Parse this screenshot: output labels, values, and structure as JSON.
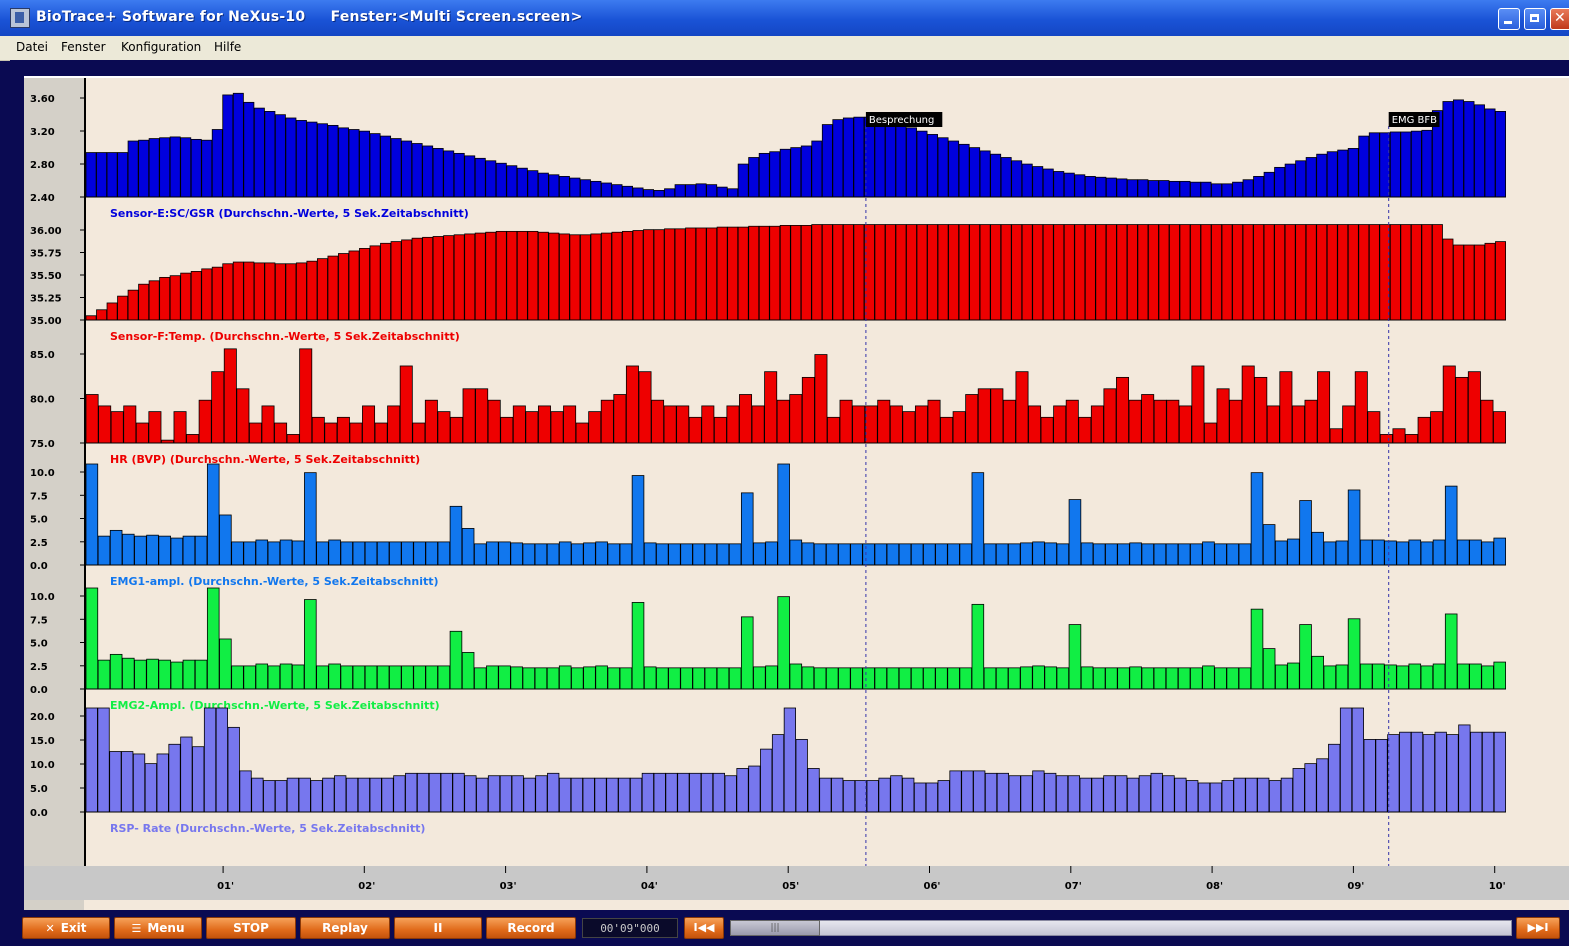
{
  "window": {
    "title": "BioTrace+ Software for NeXus-10     Fenster:<Multi Screen.screen>"
  },
  "menu": [
    {
      "label": "Datei"
    },
    {
      "label": "Fenster"
    },
    {
      "label": "Konfiguration"
    },
    {
      "label": "Hilfe"
    }
  ],
  "markers": [
    {
      "label": "Besprechung",
      "x": 5.55
    },
    {
      "label": "EMG BFB",
      "x": 9.25
    }
  ],
  "colors": {
    "background": "#f3e9dc",
    "sc": "#0000dd",
    "temp": "#ee0000",
    "hr": "#ee0000",
    "emg1": "#1177ee",
    "emg2": "#11ee44",
    "rsp": "#7777ee"
  },
  "chart_data": [
    {
      "type": "bar",
      "id": "sc",
      "label": "Sensor-E:SC/GSR (Durchschn.-Werte, 5 Sek.Zeitabschnitt)",
      "yticks": [
        "3.60",
        "3.20",
        "2.80",
        "2.40"
      ],
      "ylim": [
        2.4,
        3.7
      ],
      "values": [
        2.94,
        2.94,
        2.94,
        2.94,
        3.08,
        3.09,
        3.11,
        3.12,
        3.13,
        3.12,
        3.1,
        3.09,
        3.22,
        3.64,
        3.66,
        3.55,
        3.48,
        3.44,
        3.4,
        3.36,
        3.33,
        3.31,
        3.29,
        3.27,
        3.24,
        3.22,
        3.2,
        3.17,
        3.14,
        3.11,
        3.08,
        3.05,
        3.02,
        2.99,
        2.96,
        2.93,
        2.9,
        2.87,
        2.84,
        2.81,
        2.78,
        2.75,
        2.72,
        2.69,
        2.67,
        2.65,
        2.63,
        2.61,
        2.59,
        2.57,
        2.55,
        2.53,
        2.51,
        2.49,
        2.48,
        2.5,
        2.55,
        2.55,
        2.56,
        2.55,
        2.52,
        2.5,
        2.8,
        2.88,
        2.93,
        2.95,
        2.98,
        3.0,
        3.02,
        3.08,
        3.28,
        3.34,
        3.36,
        3.37,
        3.37,
        3.35,
        3.32,
        3.28,
        3.24,
        3.2,
        3.16,
        3.12,
        3.08,
        3.04,
        3.0,
        2.96,
        2.92,
        2.88,
        2.84,
        2.8,
        2.77,
        2.74,
        2.71,
        2.69,
        2.67,
        2.65,
        2.64,
        2.63,
        2.62,
        2.61,
        2.61,
        2.6,
        2.6,
        2.59,
        2.59,
        2.58,
        2.58,
        2.56,
        2.56,
        2.58,
        2.61,
        2.65,
        2.7,
        2.76,
        2.8,
        2.84,
        2.88,
        2.92,
        2.95,
        2.97,
        2.99,
        3.14,
        3.18,
        3.18,
        3.19,
        3.19,
        3.2,
        3.21,
        3.45,
        3.56,
        3.58,
        3.56,
        3.52,
        3.47,
        3.44
      ]
    },
    {
      "type": "bar",
      "id": "temp",
      "label": "Sensor-F:Temp. (Durchschn.-Werte, 5 Sek.Zeitabschnitt)",
      "yticks": [
        "36.00",
        "35.75",
        "35.50",
        "35.25",
        "35.00"
      ],
      "ylim": [
        35.0,
        36.15
      ],
      "values": [
        35.05,
        35.12,
        35.2,
        35.28,
        35.35,
        35.42,
        35.46,
        35.5,
        35.52,
        35.55,
        35.57,
        35.6,
        35.62,
        35.66,
        35.68,
        35.68,
        35.67,
        35.67,
        35.66,
        35.66,
        35.67,
        35.69,
        35.72,
        35.75,
        35.78,
        35.81,
        35.84,
        35.87,
        35.9,
        35.92,
        35.94,
        35.96,
        35.97,
        35.98,
        35.99,
        36.0,
        36.01,
        36.02,
        36.03,
        36.04,
        36.04,
        36.04,
        36.04,
        36.03,
        36.02,
        36.01,
        36.0,
        36.0,
        36.01,
        36.02,
        36.03,
        36.04,
        36.05,
        36.06,
        36.06,
        36.07,
        36.07,
        36.08,
        36.08,
        36.08,
        36.09,
        36.09,
        36.09,
        36.1,
        36.1,
        36.1,
        36.11,
        36.11,
        36.11,
        36.12,
        36.12,
        36.12,
        36.12,
        36.12,
        36.12,
        36.12,
        36.12,
        36.12,
        36.12,
        36.12,
        36.12,
        36.12,
        36.12,
        36.12,
        36.12,
        36.12,
        36.12,
        36.12,
        36.12,
        36.12,
        36.12,
        36.12,
        36.12,
        36.12,
        36.12,
        36.12,
        36.12,
        36.12,
        36.12,
        36.12,
        36.12,
        36.12,
        36.12,
        36.12,
        36.12,
        36.12,
        36.12,
        36.12,
        36.12,
        36.12,
        36.12,
        36.12,
        36.12,
        36.12,
        36.12,
        36.12,
        36.12,
        36.12,
        36.12,
        36.12,
        36.12,
        36.12,
        36.12,
        36.12,
        36.12,
        36.12,
        36.12,
        36.12,
        36.12,
        35.95,
        35.88,
        35.88,
        35.88,
        35.9,
        35.92
      ]
    },
    {
      "type": "bar",
      "id": "hr",
      "label": "HR (BVP) (Durchschn.-Werte, 5 Sek.Zeitabschnitt)",
      "yticks": [
        "85.0",
        "80.0",
        "75.0"
      ],
      "ylim": [
        71.5,
        88.5
      ],
      "values": [
        80,
        78,
        77,
        78,
        75,
        77,
        72,
        77,
        73,
        79,
        84,
        88,
        81,
        75,
        78,
        75,
        73,
        88,
        76,
        75,
        76,
        75,
        78,
        75,
        78,
        85,
        75,
        79,
        77,
        76,
        81,
        81,
        79,
        76,
        78,
        77,
        78,
        77,
        78,
        75,
        77,
        79,
        80,
        85,
        84,
        79,
        78,
        78,
        76,
        78,
        76,
        78,
        80,
        78,
        84,
        79,
        80,
        83,
        87,
        76,
        79,
        78,
        78,
        79,
        78,
        77,
        78,
        79,
        76,
        77,
        80,
        81,
        81,
        79,
        84,
        78,
        76,
        78,
        79,
        76,
        78,
        81,
        83,
        79,
        80,
        79,
        79,
        78,
        85,
        75,
        81,
        79,
        85,
        83,
        78,
        84,
        78,
        79,
        84,
        74,
        78,
        84,
        77,
        73,
        74,
        73,
        76,
        77,
        85,
        83,
        84,
        79,
        77
      ]
    },
    {
      "type": "bar",
      "id": "emg1",
      "label": "EMG1-ampl. (Durchschn.-Werte, 5 Sek.Zeitabschnitt)",
      "yticks": [
        "10.0",
        "7.5",
        "5.0",
        "2.5",
        "0.0"
      ],
      "ylim": [
        0,
        10.5
      ],
      "values": [
        10.5,
        3,
        3.6,
        3.2,
        3,
        3.1,
        3,
        2.8,
        3,
        3,
        10.5,
        5.2,
        2.4,
        2.4,
        2.6,
        2.4,
        2.6,
        2.5,
        9.6,
        2.4,
        2.6,
        2.4,
        2.4,
        2.4,
        2.4,
        2.4,
        2.4,
        2.4,
        2.4,
        2.4,
        6.1,
        3.8,
        2.2,
        2.4,
        2.4,
        2.3,
        2.2,
        2.2,
        2.2,
        2.4,
        2.2,
        2.3,
        2.4,
        2.2,
        2.2,
        9.3,
        2.3,
        2.2,
        2.2,
        2.2,
        2.2,
        2.2,
        2.2,
        2.2,
        7.5,
        2.3,
        2.4,
        10.5,
        2.6,
        2.3,
        2.2,
        2.2,
        2.2,
        2.2,
        2.2,
        2.2,
        2.2,
        2.2,
        2.2,
        2.2,
        2.2,
        2.2,
        2.2,
        9.6,
        2.2,
        2.2,
        2.2,
        2.3,
        2.4,
        2.3,
        2.2,
        6.8,
        2.3,
        2.2,
        2.2,
        2.2,
        2.3,
        2.2,
        2.2,
        2.2,
        2.2,
        2.2,
        2.4,
        2.2,
        2.2,
        2.2,
        9.6,
        4.2,
        2.5,
        2.7,
        6.7,
        3.4,
        2.4,
        2.5,
        7.8,
        2.6,
        2.6,
        2.5,
        2.4,
        2.6,
        2.4,
        2.6,
        8.2,
        2.6,
        2.6,
        2.4,
        2.8
      ]
    },
    {
      "type": "bar",
      "id": "emg2",
      "label": "EMG2-Ampl. (Durchschn.-Werte, 5 Sek.Zeitabschnitt)",
      "yticks": [
        "10.0",
        "7.5",
        "5.0",
        "2.5",
        "0.0"
      ],
      "ylim": [
        0,
        10.5
      ],
      "values": [
        10.5,
        3,
        3.6,
        3.2,
        3,
        3.1,
        3,
        2.8,
        3,
        3,
        10.5,
        5.2,
        2.4,
        2.4,
        2.6,
        2.4,
        2.6,
        2.5,
        9.3,
        2.4,
        2.6,
        2.4,
        2.4,
        2.4,
        2.4,
        2.4,
        2.4,
        2.4,
        2.4,
        2.4,
        6,
        3.8,
        2.2,
        2.4,
        2.4,
        2.3,
        2.2,
        2.2,
        2.2,
        2.4,
        2.2,
        2.3,
        2.4,
        2.2,
        2.2,
        9,
        2.3,
        2.2,
        2.2,
        2.2,
        2.2,
        2.2,
        2.2,
        2.2,
        7.5,
        2.3,
        2.4,
        9.6,
        2.6,
        2.3,
        2.2,
        2.2,
        2.2,
        2.2,
        2.2,
        2.2,
        2.2,
        2.2,
        2.2,
        2.2,
        2.2,
        2.2,
        2.2,
        8.8,
        2.2,
        2.2,
        2.2,
        2.3,
        2.4,
        2.3,
        2.2,
        6.7,
        2.3,
        2.2,
        2.2,
        2.2,
        2.3,
        2.2,
        2.2,
        2.2,
        2.2,
        2.2,
        2.4,
        2.2,
        2.2,
        2.2,
        8.3,
        4.2,
        2.5,
        2.7,
        6.7,
        3.4,
        2.4,
        2.5,
        7.3,
        2.6,
        2.6,
        2.5,
        2.4,
        2.6,
        2.4,
        2.6,
        7.8,
        2.6,
        2.6,
        2.4,
        2.8
      ]
    },
    {
      "type": "bar",
      "id": "rsp",
      "label": "RSP- Rate (Durchschn.-Werte, 5 Sek.Zeitabschnitt)",
      "yticks": [
        "20.0",
        "15.0",
        "10.0",
        "5.0",
        "0.0"
      ],
      "ylim": [
        0,
        21.5
      ],
      "values": [
        21.5,
        21.5,
        12.5,
        12.5,
        12,
        10,
        12,
        14,
        15.5,
        13.5,
        21.5,
        21.5,
        17.5,
        8.5,
        7,
        6.5,
        6.5,
        7,
        7,
        6.5,
        7,
        7.5,
        7,
        7,
        7,
        7,
        7.5,
        8,
        8,
        8,
        8,
        8,
        7.5,
        7,
        7.5,
        7.5,
        7.5,
        7,
        7.5,
        8,
        7,
        7,
        7,
        7,
        7,
        7,
        7,
        8,
        8,
        8,
        8,
        8,
        8,
        8,
        7.5,
        9,
        9.5,
        13,
        16,
        21.5,
        15,
        9,
        7,
        7,
        6.5,
        6.5,
        6.5,
        7,
        7.5,
        7,
        6,
        6,
        6.5,
        8.5,
        8.5,
        8.5,
        8,
        8,
        7.5,
        7.5,
        8.5,
        8,
        7.5,
        7.5,
        7,
        7,
        7.5,
        7.5,
        7,
        7.5,
        8,
        7.5,
        7,
        6.5,
        6,
        6,
        6.5,
        7,
        7,
        7,
        6.5,
        7,
        9,
        10,
        11,
        14,
        21.5,
        21.5,
        15,
        15,
        16,
        16.5,
        16.5,
        16,
        16.5,
        16,
        18,
        16.5,
        16.5,
        16.5
      ]
    }
  ],
  "time_axis": {
    "ticks": [
      "01'",
      "02'",
      "03'",
      "04'",
      "05'",
      "06'",
      "07'",
      "08'",
      "09'",
      "10'"
    ],
    "xlim": [
      0.03,
      10.08
    ]
  },
  "controls": {
    "exit": "Exit",
    "menu": "Menu",
    "stop": "STOP",
    "replay": "Replay",
    "pause": "II",
    "record": "Record",
    "time": "00'09\"000",
    "rewind": "I◀◀",
    "forward": "▶▶I"
  }
}
